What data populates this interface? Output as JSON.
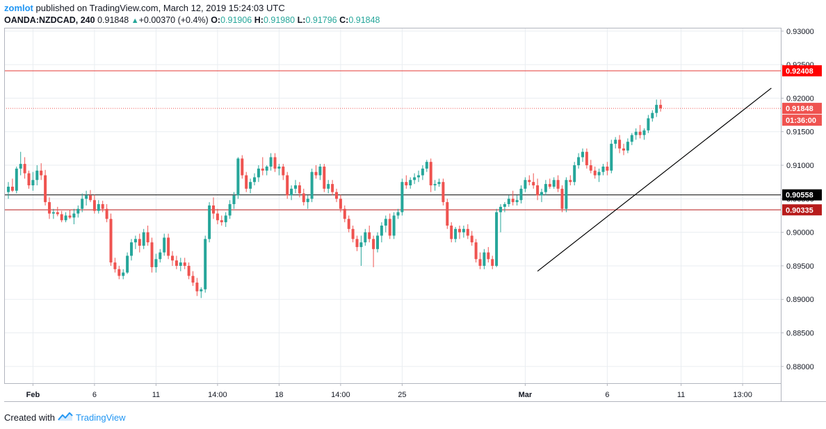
{
  "header": {
    "author": "zomlot",
    "published_text": "published on TradingView.com, March 12, 2019 15:24:03 UTC",
    "symbol": "OANDA:NZDCAD, 240",
    "last": "0.91848",
    "change_icon": "triangle-up-icon",
    "change": "+0.00370 (+0.4%)",
    "o_label": "O:",
    "o_value": "0.91906",
    "h_label": "H:",
    "h_value": "0.91980",
    "l_label": "L:",
    "l_value": "0.91796",
    "c_label": "C:",
    "c_value": "0.91848"
  },
  "footer": {
    "created_with": "Created with",
    "brand": "TradingView",
    "brand_icon": "tradingview-logo-icon"
  },
  "colors": {
    "up": "#26a69a",
    "down": "#ef5350",
    "grid": "#e9edf1",
    "resistance": "#e53935",
    "support_black": "#000000",
    "support_red": "#b71c1c",
    "label_price": "#ef5350",
    "label_resistance": "#ff0000"
  },
  "chart_data": {
    "type": "candlestick",
    "title": "OANDA:NZDCAD, 240",
    "ylim": [
      0.8775,
      0.9305
    ],
    "y_ticks": [
      "0.93000",
      "0.92500",
      "0.92000",
      "0.91500",
      "0.91000",
      "0.90500",
      "0.90000",
      "0.89500",
      "0.89000",
      "0.88500",
      "0.88000"
    ],
    "y_tick_values": [
      0.93,
      0.925,
      0.92,
      0.915,
      0.91,
      0.905,
      0.9,
      0.895,
      0.89,
      0.885,
      0.88
    ],
    "x_ticks": [
      {
        "label": "Feb",
        "bar": 6,
        "bold": true
      },
      {
        "label": "6",
        "bar": 21,
        "bold": false
      },
      {
        "label": "11",
        "bar": 36,
        "bold": false
      },
      {
        "label": "14:00",
        "bar": 51,
        "bold": false
      },
      {
        "label": "18",
        "bar": 66,
        "bold": false
      },
      {
        "label": "14:00",
        "bar": 81,
        "bold": false
      },
      {
        "label": "25",
        "bar": 96,
        "bold": false
      },
      {
        "label": "Mar",
        "bar": 126,
        "bold": true
      },
      {
        "label": "6",
        "bar": 146,
        "bold": false
      },
      {
        "label": "11",
        "bar": 164,
        "bold": false
      },
      {
        "label": "13:00",
        "bar": 179,
        "bold": false
      }
    ],
    "total_bars": 186,
    "price_lines": [
      {
        "value": 0.92408,
        "label": "0.92408",
        "style": "solid",
        "role": "resistance"
      },
      {
        "value": 0.91848,
        "label": "0.91848",
        "style": "dotted",
        "role": "last-price",
        "sublabel": "01:36:00"
      },
      {
        "value": 0.90558,
        "label": "0.90558",
        "style": "solid",
        "role": "support-black"
      },
      {
        "value": 0.90335,
        "label": "0.90335",
        "style": "solid",
        "role": "support-red"
      }
    ],
    "trendline": {
      "start": {
        "bar": 129,
        "price": 0.8942
      },
      "end": {
        "bar": 186,
        "price": 0.9215
      }
    },
    "candles": [
      [
        0.906,
        0.9075,
        0.905,
        0.9068
      ],
      [
        0.9068,
        0.908,
        0.906,
        0.9062
      ],
      [
        0.9062,
        0.9098,
        0.9058,
        0.9095
      ],
      [
        0.9095,
        0.912,
        0.9085,
        0.9102
      ],
      [
        0.9102,
        0.9112,
        0.908,
        0.9088
      ],
      [
        0.9088,
        0.9092,
        0.9065,
        0.907
      ],
      [
        0.907,
        0.909,
        0.9062,
        0.9078
      ],
      [
        0.9078,
        0.91,
        0.907,
        0.9092
      ],
      [
        0.9092,
        0.9103,
        0.9078,
        0.9085
      ],
      [
        0.9085,
        0.9093,
        0.904,
        0.9045
      ],
      [
        0.9045,
        0.9052,
        0.902,
        0.9028
      ],
      [
        0.9028,
        0.9035,
        0.902,
        0.903
      ],
      [
        0.903,
        0.9038,
        0.9024,
        0.9027
      ],
      [
        0.9027,
        0.9032,
        0.9015,
        0.9018
      ],
      [
        0.9018,
        0.903,
        0.9015,
        0.9025
      ],
      [
        0.9025,
        0.9033,
        0.902,
        0.9022
      ],
      [
        0.9022,
        0.9035,
        0.9012,
        0.9028
      ],
      [
        0.9028,
        0.904,
        0.9022,
        0.9035
      ],
      [
        0.9035,
        0.9058,
        0.903,
        0.905
      ],
      [
        0.905,
        0.9062,
        0.904,
        0.9055
      ],
      [
        0.9055,
        0.9063,
        0.9045,
        0.9048
      ],
      [
        0.9048,
        0.9056,
        0.9028,
        0.9032
      ],
      [
        0.9032,
        0.9048,
        0.9028,
        0.9042
      ],
      [
        0.9042,
        0.9047,
        0.903,
        0.9035
      ],
      [
        0.9035,
        0.9042,
        0.9015,
        0.902
      ],
      [
        0.902,
        0.9028,
        0.895,
        0.8955
      ],
      [
        0.8955,
        0.8962,
        0.894,
        0.8945
      ],
      [
        0.8945,
        0.895,
        0.893,
        0.8935
      ],
      [
        0.8935,
        0.8945,
        0.893,
        0.894
      ],
      [
        0.894,
        0.897,
        0.8938,
        0.8965
      ],
      [
        0.8965,
        0.899,
        0.8958,
        0.8985
      ],
      [
        0.8985,
        0.8995,
        0.8975,
        0.899
      ],
      [
        0.899,
        0.8998,
        0.897,
        0.898
      ],
      [
        0.898,
        0.9005,
        0.8975,
        0.9
      ],
      [
        0.9,
        0.901,
        0.898,
        0.8985
      ],
      [
        0.8985,
        0.8992,
        0.894,
        0.8948
      ],
      [
        0.8948,
        0.8968,
        0.894,
        0.896
      ],
      [
        0.896,
        0.8975,
        0.8955,
        0.897
      ],
      [
        0.897,
        0.8998,
        0.8965,
        0.8992
      ],
      [
        0.8992,
        0.8998,
        0.896,
        0.8965
      ],
      [
        0.8965,
        0.8972,
        0.895,
        0.8958
      ],
      [
        0.8958,
        0.8965,
        0.8945,
        0.895
      ],
      [
        0.895,
        0.8962,
        0.8942,
        0.8955
      ],
      [
        0.8955,
        0.8962,
        0.8945,
        0.895
      ],
      [
        0.895,
        0.8955,
        0.893,
        0.8935
      ],
      [
        0.8935,
        0.8942,
        0.892,
        0.8925
      ],
      [
        0.8925,
        0.8932,
        0.8905,
        0.8912
      ],
      [
        0.8912,
        0.8918,
        0.8902,
        0.8915
      ],
      [
        0.8915,
        0.8995,
        0.891,
        0.899
      ],
      [
        0.899,
        0.9045,
        0.8985,
        0.904
      ],
      [
        0.904,
        0.9052,
        0.902,
        0.9028
      ],
      [
        0.9028,
        0.9035,
        0.9012,
        0.9018
      ],
      [
        0.9018,
        0.9025,
        0.901,
        0.9015
      ],
      [
        0.9015,
        0.903,
        0.9008,
        0.9025
      ],
      [
        0.9025,
        0.9048,
        0.902,
        0.9042
      ],
      [
        0.9042,
        0.906,
        0.9035,
        0.9055
      ],
      [
        0.9055,
        0.9112,
        0.905,
        0.911
      ],
      [
        0.911,
        0.9115,
        0.908,
        0.9085
      ],
      [
        0.9085,
        0.909,
        0.906,
        0.9065
      ],
      [
        0.9065,
        0.908,
        0.9058,
        0.9075
      ],
      [
        0.9075,
        0.9088,
        0.907,
        0.9082
      ],
      [
        0.9082,
        0.91,
        0.9075,
        0.9095
      ],
      [
        0.9095,
        0.9112,
        0.9085,
        0.9092
      ],
      [
        0.9092,
        0.91,
        0.9085,
        0.9098
      ],
      [
        0.9098,
        0.9118,
        0.9092,
        0.9112
      ],
      [
        0.9112,
        0.9118,
        0.909,
        0.9095
      ],
      [
        0.9095,
        0.9102,
        0.9085,
        0.9098
      ],
      [
        0.9098,
        0.9102,
        0.9078,
        0.9085
      ],
      [
        0.9085,
        0.909,
        0.905,
        0.9055
      ],
      [
        0.9055,
        0.907,
        0.9048,
        0.9065
      ],
      [
        0.9065,
        0.9078,
        0.9058,
        0.907
      ],
      [
        0.907,
        0.9075,
        0.9052,
        0.9058
      ],
      [
        0.9058,
        0.9065,
        0.904,
        0.9045
      ],
      [
        0.9045,
        0.9055,
        0.9035,
        0.905
      ],
      [
        0.905,
        0.9095,
        0.9045,
        0.909
      ],
      [
        0.909,
        0.91,
        0.908,
        0.9085
      ],
      [
        0.9085,
        0.9102,
        0.9078,
        0.9098
      ],
      [
        0.9098,
        0.9102,
        0.906,
        0.9065
      ],
      [
        0.9065,
        0.9078,
        0.9058,
        0.9072
      ],
      [
        0.9072,
        0.9078,
        0.9055,
        0.906
      ],
      [
        0.906,
        0.9065,
        0.9045,
        0.905
      ],
      [
        0.905,
        0.9056,
        0.903,
        0.9035
      ],
      [
        0.9035,
        0.904,
        0.9015,
        0.902
      ],
      [
        0.902,
        0.9025,
        0.9,
        0.9005
      ],
      [
        0.9005,
        0.901,
        0.8985,
        0.899
      ],
      [
        0.899,
        0.8995,
        0.8972,
        0.8978
      ],
      [
        0.8978,
        0.8995,
        0.895,
        0.8985
      ],
      [
        0.8985,
        0.9005,
        0.898,
        0.9
      ],
      [
        0.9,
        0.901,
        0.8985,
        0.899
      ],
      [
        0.899,
        0.8995,
        0.8948,
        0.8975
      ],
      [
        0.8975,
        0.9,
        0.897,
        0.8995
      ],
      [
        0.8995,
        0.9015,
        0.8985,
        0.901
      ],
      [
        0.901,
        0.9025,
        0.9,
        0.902
      ],
      [
        0.902,
        0.9028,
        0.899,
        0.8995
      ],
      [
        0.8995,
        0.903,
        0.899,
        0.9025
      ],
      [
        0.9025,
        0.9035,
        0.902,
        0.903
      ],
      [
        0.903,
        0.908,
        0.9025,
        0.9075
      ],
      [
        0.9075,
        0.9085,
        0.9065,
        0.907
      ],
      [
        0.907,
        0.9082,
        0.9065,
        0.9078
      ],
      [
        0.9078,
        0.9088,
        0.9072,
        0.9082
      ],
      [
        0.9082,
        0.9092,
        0.9075,
        0.9085
      ],
      [
        0.9085,
        0.91,
        0.9078,
        0.9095
      ],
      [
        0.9095,
        0.9108,
        0.909,
        0.9105
      ],
      [
        0.9105,
        0.911,
        0.906,
        0.907
      ],
      [
        0.907,
        0.9078,
        0.9062,
        0.9072
      ],
      [
        0.9072,
        0.908,
        0.9068,
        0.9075
      ],
      [
        0.9075,
        0.908,
        0.904,
        0.9045
      ],
      [
        0.9045,
        0.905,
        0.9005,
        0.901
      ],
      [
        0.901,
        0.9015,
        0.8985,
        0.899
      ],
      [
        0.899,
        0.9008,
        0.8985,
        0.9005
      ],
      [
        0.9005,
        0.901,
        0.899,
        0.9
      ],
      [
        0.9,
        0.901,
        0.8992,
        0.9005
      ],
      [
        0.9005,
        0.9012,
        0.899,
        0.8995
      ],
      [
        0.8995,
        0.9002,
        0.898,
        0.8985
      ],
      [
        0.8985,
        0.899,
        0.8955,
        0.896
      ],
      [
        0.896,
        0.897,
        0.8945,
        0.895
      ],
      [
        0.895,
        0.8975,
        0.8945,
        0.897
      ],
      [
        0.897,
        0.8978,
        0.8955,
        0.896
      ],
      [
        0.896,
        0.8965,
        0.8945,
        0.895
      ],
      [
        0.895,
        0.9035,
        0.8948,
        0.903
      ],
      [
        0.903,
        0.9042,
        0.9,
        0.9038
      ],
      [
        0.9038,
        0.9045,
        0.903,
        0.9042
      ],
      [
        0.9042,
        0.9055,
        0.9038,
        0.905
      ],
      [
        0.905,
        0.9062,
        0.904,
        0.9045
      ],
      [
        0.9045,
        0.9055,
        0.904,
        0.9048
      ],
      [
        0.9048,
        0.907,
        0.9043,
        0.9065
      ],
      [
        0.9065,
        0.9082,
        0.906,
        0.9078
      ],
      [
        0.9078,
        0.9085,
        0.907,
        0.9075
      ],
      [
        0.9075,
        0.9088,
        0.9065,
        0.907
      ],
      [
        0.907,
        0.908,
        0.9048,
        0.9055
      ],
      [
        0.9055,
        0.9065,
        0.9045,
        0.906
      ],
      [
        0.906,
        0.9078,
        0.9055,
        0.9072
      ],
      [
        0.9072,
        0.908,
        0.9065,
        0.9068
      ],
      [
        0.9068,
        0.9082,
        0.9065,
        0.9078
      ],
      [
        0.9078,
        0.9085,
        0.906,
        0.9065
      ],
      [
        0.9065,
        0.907,
        0.903,
        0.9035
      ],
      [
        0.9035,
        0.9082,
        0.903,
        0.9078
      ],
      [
        0.9078,
        0.9085,
        0.907,
        0.9075
      ],
      [
        0.9075,
        0.9105,
        0.907,
        0.91
      ],
      [
        0.91,
        0.9118,
        0.9095,
        0.9112
      ],
      [
        0.9112,
        0.9125,
        0.9105,
        0.912
      ],
      [
        0.912,
        0.9125,
        0.9095,
        0.91
      ],
      [
        0.91,
        0.9108,
        0.9088,
        0.9092
      ],
      [
        0.9092,
        0.9098,
        0.908,
        0.9085
      ],
      [
        0.9085,
        0.9095,
        0.9075,
        0.909
      ],
      [
        0.909,
        0.9102,
        0.9085,
        0.9098
      ],
      [
        0.9098,
        0.9105,
        0.9085,
        0.9092
      ],
      [
        0.9092,
        0.9138,
        0.9088,
        0.9132
      ],
      [
        0.9132,
        0.9142,
        0.9125,
        0.9138
      ],
      [
        0.9138,
        0.9145,
        0.9118,
        0.9125
      ],
      [
        0.9125,
        0.9132,
        0.9115,
        0.9122
      ],
      [
        0.9122,
        0.914,
        0.9118,
        0.9135
      ],
      [
        0.9135,
        0.9148,
        0.913,
        0.9145
      ],
      [
        0.9145,
        0.9155,
        0.9138,
        0.915
      ],
      [
        0.915,
        0.916,
        0.914,
        0.9145
      ],
      [
        0.9145,
        0.9155,
        0.9138,
        0.9152
      ],
      [
        0.9152,
        0.9175,
        0.9148,
        0.917
      ],
      [
        0.917,
        0.9182,
        0.9165,
        0.9178
      ],
      [
        0.9178,
        0.9198,
        0.9172,
        0.919
      ],
      [
        0.919,
        0.9198,
        0.918,
        0.9185
      ]
    ]
  }
}
